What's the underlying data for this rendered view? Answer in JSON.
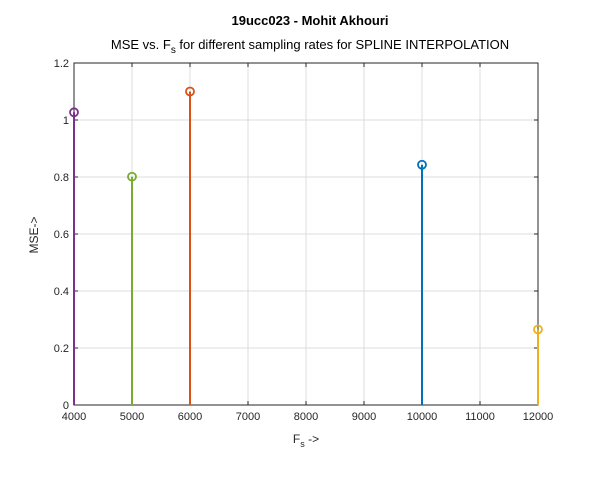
{
  "chart_data": {
    "type": "stem",
    "title": "19ucc023 - Mohit Akhouri",
    "subtitle": {
      "prefix": "MSE vs. F",
      "subscript": "s",
      "suffix": " for different sampling rates for SPLINE INTERPOLATION"
    },
    "xlabel": {
      "main": "F",
      "subscript": "s",
      "suffix": " ->"
    },
    "ylabel": "MSE->",
    "xlim": [
      4000,
      12000
    ],
    "ylim": [
      0,
      1.2
    ],
    "xticks": [
      "4000",
      "5000",
      "6000",
      "7000",
      "8000",
      "9000",
      "10000",
      "11000",
      "12000"
    ],
    "yticks": [
      "0",
      "0.2",
      "0.4",
      "0.6",
      "0.8",
      "1",
      "1.2"
    ],
    "grid": true,
    "series": [
      {
        "x": [
          10000
        ],
        "y": [
          0.843
        ],
        "color": "#0072BD"
      },
      {
        "x": [
          6000
        ],
        "y": [
          1.1
        ],
        "color": "#D95319"
      },
      {
        "x": [
          12000
        ],
        "y": [
          0.265
        ],
        "color": "#EDB120"
      },
      {
        "x": [
          4000
        ],
        "y": [
          1.027
        ],
        "color": "#7E2F8E"
      },
      {
        "x": [
          5000
        ],
        "y": [
          0.801
        ],
        "color": "#77AC30"
      }
    ]
  }
}
